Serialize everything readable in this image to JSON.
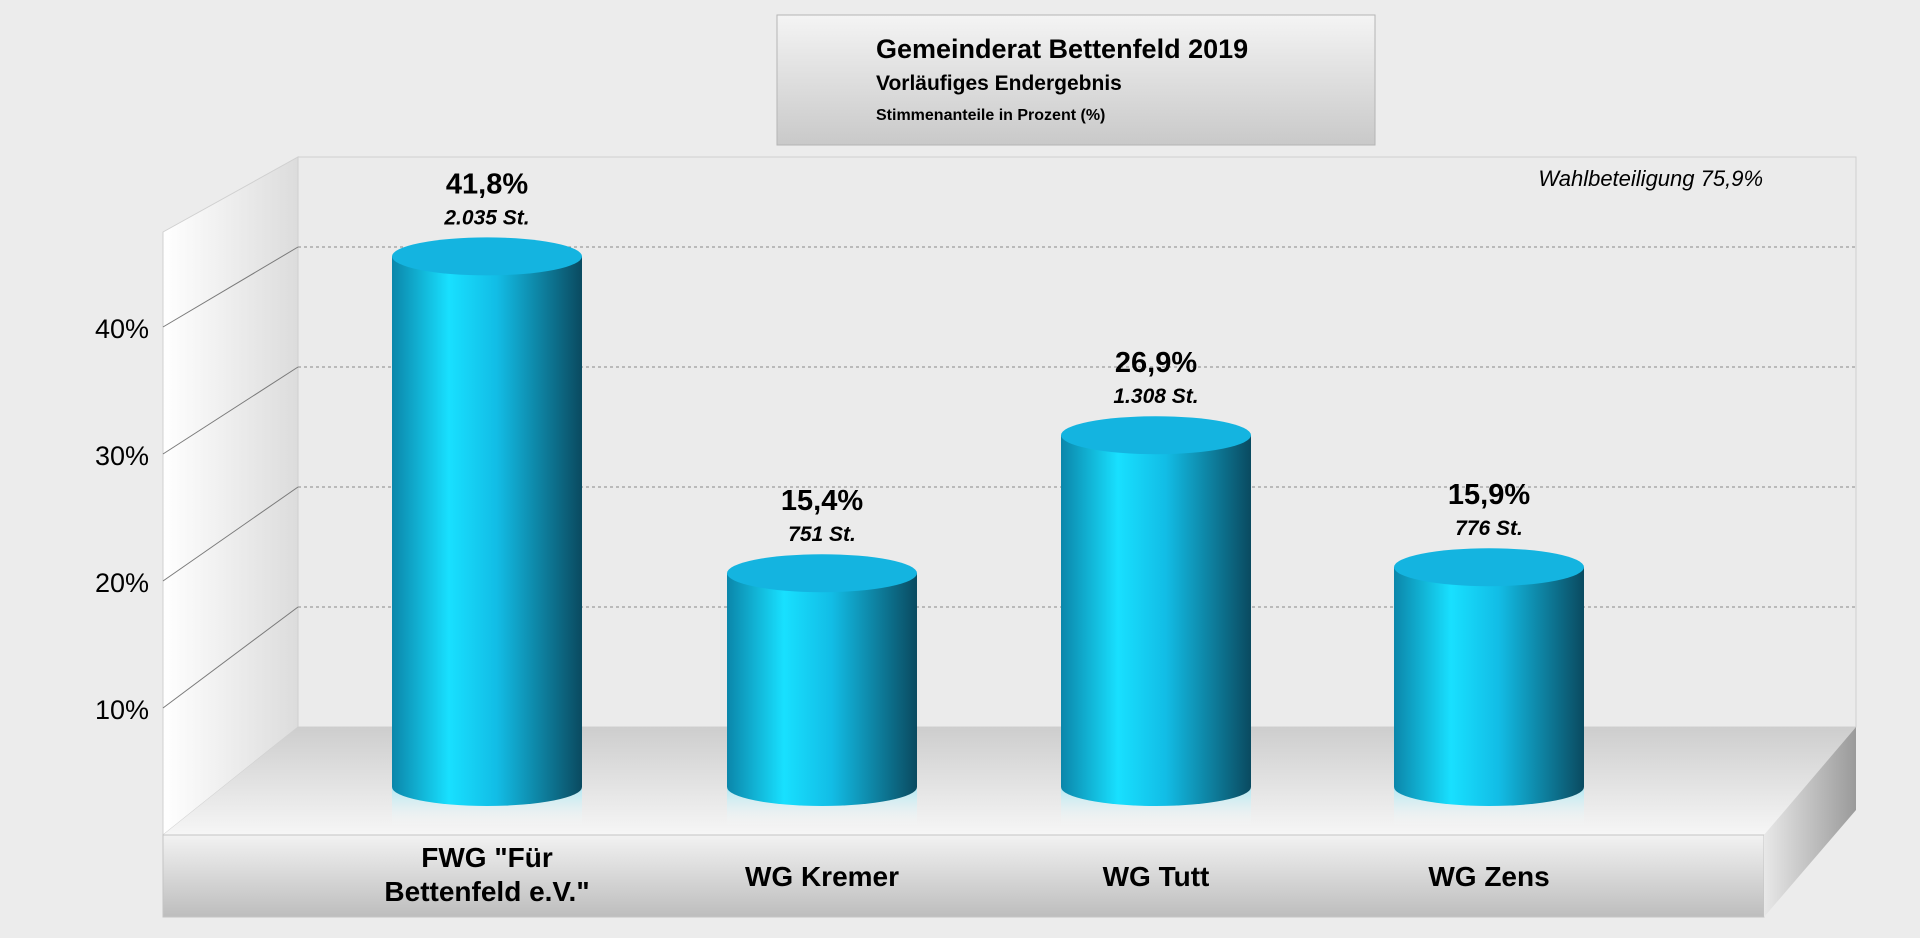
{
  "chart_data": {
    "type": "bar",
    "title": "Gemeinderat Bettenfeld 2019",
    "subtitle": "Vorläufiges Endergebnis",
    "ylabel": "Stimmenanteile in Prozent (%)",
    "annotation": "Wahlbeteiligung 75,9%",
    "categories": [
      [
        "FWG \"Für",
        "Bettenfeld e.V.\""
      ],
      [
        "WG Kremer"
      ],
      [
        "WG Tutt"
      ],
      [
        "WG Zens"
      ]
    ],
    "values": [
      41.8,
      15.4,
      26.9,
      15.9
    ],
    "value_labels": [
      "41,8%",
      "15,4%",
      "26,9%",
      "15,9%"
    ],
    "votes_labels": [
      "2.035 St.",
      "751 St.",
      "1.308 St.",
      "776 St."
    ],
    "yticks": [
      10,
      20,
      30,
      40
    ],
    "ytick_labels": [
      "10%",
      "20%",
      "30%",
      "40%"
    ],
    "ylim": [
      0,
      50
    ],
    "grid": true,
    "bar_color": "#18c4ea",
    "bar_dark_color": "#0a4f66",
    "bar_top_color": "#14b4e0"
  }
}
